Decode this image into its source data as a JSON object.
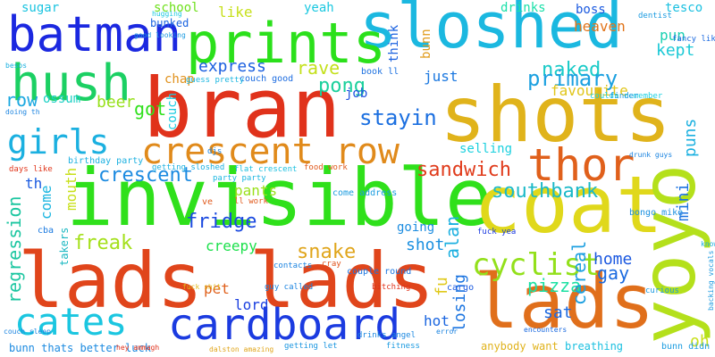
{
  "words": [
    {
      "text": "sloshed",
      "color": "#1bb8e0"
    },
    {
      "text": "shots",
      "color": "#e0b31b"
    },
    {
      "text": "bran",
      "color": "#e0321b"
    },
    {
      "text": "invisible",
      "color": "#2fe01b"
    },
    {
      "text": "coat",
      "color": "#e0d81b"
    },
    {
      "text": "lads lads",
      "color": "#e0451b"
    },
    {
      "text": "lads",
      "color": "#e06f1b"
    },
    {
      "text": "yoyo",
      "color": "#b4e01b"
    },
    {
      "text": "prints",
      "color": "#2be01b"
    },
    {
      "text": "batman",
      "color": "#1b28e0"
    },
    {
      "text": "hush",
      "color": "#1bd063"
    },
    {
      "text": "crescent row",
      "color": "#e08a1b"
    },
    {
      "text": "cardboard",
      "color": "#1b3be0"
    },
    {
      "text": "cates",
      "color": "#1bc6e0"
    },
    {
      "text": "girls",
      "color": "#1bb0e0"
    },
    {
      "text": "thor",
      "color": "#e0601b"
    },
    {
      "text": "cyclist",
      "color": "#93e01b"
    },
    {
      "text": "pong",
      "color": "#1bd09c"
    },
    {
      "text": "naked",
      "color": "#1bcbc8"
    },
    {
      "text": "primary",
      "color": "#1ba0e0"
    },
    {
      "text": "stayin",
      "color": "#1b6fe0"
    },
    {
      "text": "sandwich",
      "color": "#e03b1b"
    },
    {
      "text": "southbank",
      "color": "#1bb9c7"
    },
    {
      "text": "crescent",
      "color": "#1b8ae0"
    },
    {
      "text": "fridge",
      "color": "#1b4ae0"
    },
    {
      "text": "freak",
      "color": "#a4e01b"
    },
    {
      "text": "snake",
      "color": "#e0a51b"
    },
    {
      "text": "express",
      "color": "#1b5fe0"
    },
    {
      "text": "rave",
      "color": "#c4e01b"
    },
    {
      "text": "kept",
      "color": "#1bc9d6"
    },
    {
      "text": "pun",
      "color": "#1bd0b2"
    },
    {
      "text": "got",
      "color": "#2fe01b"
    },
    {
      "text": "beer",
      "color": "#97e01b"
    },
    {
      "text": "row",
      "color": "#1ba8e0"
    },
    {
      "text": "regression",
      "color": "#1bc6a0"
    },
    {
      "text": "pizza",
      "color": "#1be0a2"
    },
    {
      "text": "cereal",
      "color": "#1b9fe0"
    },
    {
      "text": "puns",
      "color": "#1bb0e0"
    },
    {
      "text": "mini",
      "color": "#1b72e0"
    },
    {
      "text": "gay",
      "color": "#1b6be0"
    },
    {
      "text": "home",
      "color": "#1b58e0"
    },
    {
      "text": "shot",
      "color": "#1b90e0"
    },
    {
      "text": "losing",
      "color": "#1b74e0"
    },
    {
      "text": "alan",
      "color": "#1bb0e0"
    },
    {
      "text": "creepy",
      "color": "#1be04b"
    },
    {
      "text": "pants",
      "color": "#9ae01b"
    },
    {
      "text": "pet",
      "color": "#e0601b"
    },
    {
      "text": "lord",
      "color": "#1b40e0"
    },
    {
      "text": "couch",
      "color": "#1bcbe0"
    },
    {
      "text": "mouth",
      "color": "#c8e01b"
    },
    {
      "text": "job",
      "color": "#1b4fe0"
    },
    {
      "text": "just",
      "color": "#1b78e0"
    },
    {
      "text": "favourite",
      "color": "#e0c51b"
    },
    {
      "text": "boss",
      "color": "#1b5ae0"
    },
    {
      "text": "heaven",
      "color": "#e0751b"
    },
    {
      "text": "tesco",
      "color": "#1bc0e0"
    },
    {
      "text": "sugar",
      "color": "#1bc4e0"
    },
    {
      "text": "school",
      "color": "#6ee01b"
    },
    {
      "text": "like",
      "color": "#c7e01b"
    },
    {
      "text": "yeah",
      "color": "#1bc8e0"
    },
    {
      "text": "drinks",
      "color": "#1be0a9"
    },
    {
      "text": "bunked",
      "color": "#1b64e0"
    },
    {
      "text": "ossum",
      "color": "#1bd0c4"
    },
    {
      "text": "chap",
      "color": "#e0901b"
    },
    {
      "text": "th",
      "color": "#1b5be0"
    },
    {
      "text": "come",
      "color": "#1bb6e0"
    },
    {
      "text": "fu",
      "color": "#e0c91b"
    },
    {
      "text": "sat",
      "color": "#1b68e0"
    },
    {
      "text": "hot",
      "color": "#1b66e0"
    },
    {
      "text": "oh",
      "color": "#c8e01b"
    },
    {
      "text": "think",
      "color": "#1b62e0"
    },
    {
      "text": "bunn",
      "color": "#e09b1b"
    },
    {
      "text": "selling",
      "color": "#1bd0de"
    },
    {
      "text": "going",
      "color": "#1b8ce0"
    },
    {
      "text": "takers",
      "color": "#1bb8c2"
    },
    {
      "text": "birthday party",
      "color": "#1bb0e0"
    },
    {
      "text": "come address",
      "color": "#1b9ce0"
    },
    {
      "text": "food work",
      "color": "#e0591b"
    },
    {
      "text": "flat crescent",
      "color": "#1bc0e0"
    },
    {
      "text": "couple round",
      "color": "#1b76e0"
    },
    {
      "text": "bunn thats better luck",
      "color": "#1b8ae0"
    },
    {
      "text": "anybody want",
      "color": "#e0b21b"
    },
    {
      "text": "breathing",
      "color": "#1bc0e0"
    },
    {
      "text": "bunn didn",
      "color": "#1b9ce0"
    },
    {
      "text": "book ll",
      "color": "#1b70e0"
    },
    {
      "text": "couch good",
      "color": "#1b6be0"
    },
    {
      "text": "guess pretty",
      "color": "#1bb6e0"
    },
    {
      "text": "good looking",
      "color": "#1b9ae0"
    },
    {
      "text": "couldn remember",
      "color": "#1bd0e0"
    },
    {
      "text": "bongo mike",
      "color": "#1b90e0"
    },
    {
      "text": "days like",
      "color": "#e0361b"
    },
    {
      "text": "getting sloshed",
      "color": "#1bb0e0"
    },
    {
      "text": "cargo",
      "color": "#1b5ae0"
    },
    {
      "text": "cba",
      "color": "#1b7ae0"
    },
    {
      "text": "guy called",
      "color": "#1b84e0"
    },
    {
      "text": "fuck yea",
      "color": "#1b3ae0"
    },
    {
      "text": "fancy like",
      "color": "#1b6ae0"
    },
    {
      "text": "dentist",
      "color": "#1b9be0"
    },
    {
      "text": "hugging",
      "color": "#1bc8e0"
    },
    {
      "text": "finder",
      "color": "#1b9ae0"
    },
    {
      "text": "curious",
      "color": "#1b9ae0"
    },
    {
      "text": "contacts",
      "color": "#1b84e0"
    },
    {
      "text": "cray",
      "color": "#e0521b"
    },
    {
      "text": "bitching",
      "color": "#e0331b"
    },
    {
      "text": "encounters",
      "color": "#1b6ae0"
    },
    {
      "text": "fitness",
      "color": "#1b9ae0"
    },
    {
      "text": "drinks angel",
      "color": "#1b88e0"
    },
    {
      "text": "getting let",
      "color": "#1b96e0"
    },
    {
      "text": "hey ammagh",
      "color": "#e0301b"
    },
    {
      "text": "dalston amazing",
      "color": "#e0a51b"
    },
    {
      "text": "couch sleep",
      "color": "#1b84e0"
    },
    {
      "text": "ll work",
      "color": "#e0591b"
    },
    {
      "text": "ve",
      "color": "#e0591b"
    },
    {
      "text": "djs",
      "color": "#1b84e0"
    },
    {
      "text": "party party",
      "color": "#1bb6e0"
    },
    {
      "text": "fuck shit",
      "color": "#e0ba1b"
    },
    {
      "text": "error",
      "color": "#1b84e0"
    },
    {
      "text": "know love",
      "color": "#1bb0e0"
    },
    {
      "text": "backing vocals",
      "color": "#1b9ae0"
    },
    {
      "text": "drunk guys",
      "color": "#1b84e0"
    },
    {
      "text": "besos",
      "color": "#1bb0e0"
    },
    {
      "text": "doing th",
      "color": "#1b84e0"
    }
  ]
}
